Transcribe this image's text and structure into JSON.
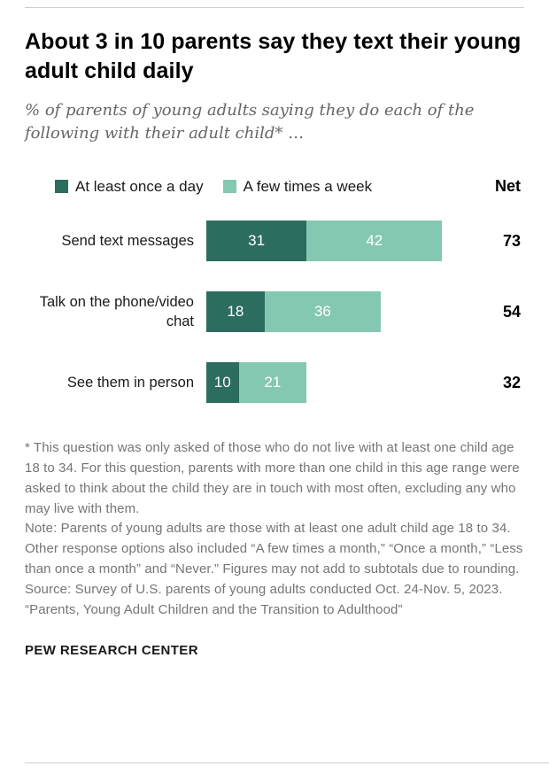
{
  "header": {
    "title": "About 3 in 10 parents say they text their young adult child daily",
    "subtitle": "% of parents of young adults saying they do each of the following with their adult child* …"
  },
  "legend": {
    "net_label": "Net"
  },
  "chart_data": {
    "type": "bar",
    "orientation": "horizontal",
    "stacked": true,
    "categories": [
      "Send text messages",
      "Talk on the phone/video chat",
      "See them in person"
    ],
    "series": [
      {
        "name": "At least once a day",
        "color": "#2d6d60",
        "values": [
          31,
          18,
          10
        ]
      },
      {
        "name": "A few times a week",
        "color": "#85c8b2",
        "values": [
          42,
          36,
          21
        ]
      }
    ],
    "net": [
      73,
      54,
      32
    ],
    "value_label_color": "#ffffff",
    "xlim": [
      0,
      80
    ],
    "grid": false,
    "legend_position": "top"
  },
  "notes": {
    "asterisk": "* This question was only asked of those who do not live with at least one child age 18 to 34. For this question, parents with more than one child in this age range were asked to think about the child they are in touch with most often, excluding any who may live with them.",
    "note": "Note: Parents of young adults are those with at least one adult child age 18 to 34. Other response options also included “A few times a month,” “Once a month,” “Less than once a month” and “Never.” Figures may not add to subtotals due to rounding.",
    "source": "Source: Survey of U.S. parents of young adults conducted Oct. 24-Nov. 5, 2023.",
    "report": "“Parents, Young Adult Children and the Transition to Adulthood”"
  },
  "footer": {
    "brand": "PEW RESEARCH CENTER"
  }
}
